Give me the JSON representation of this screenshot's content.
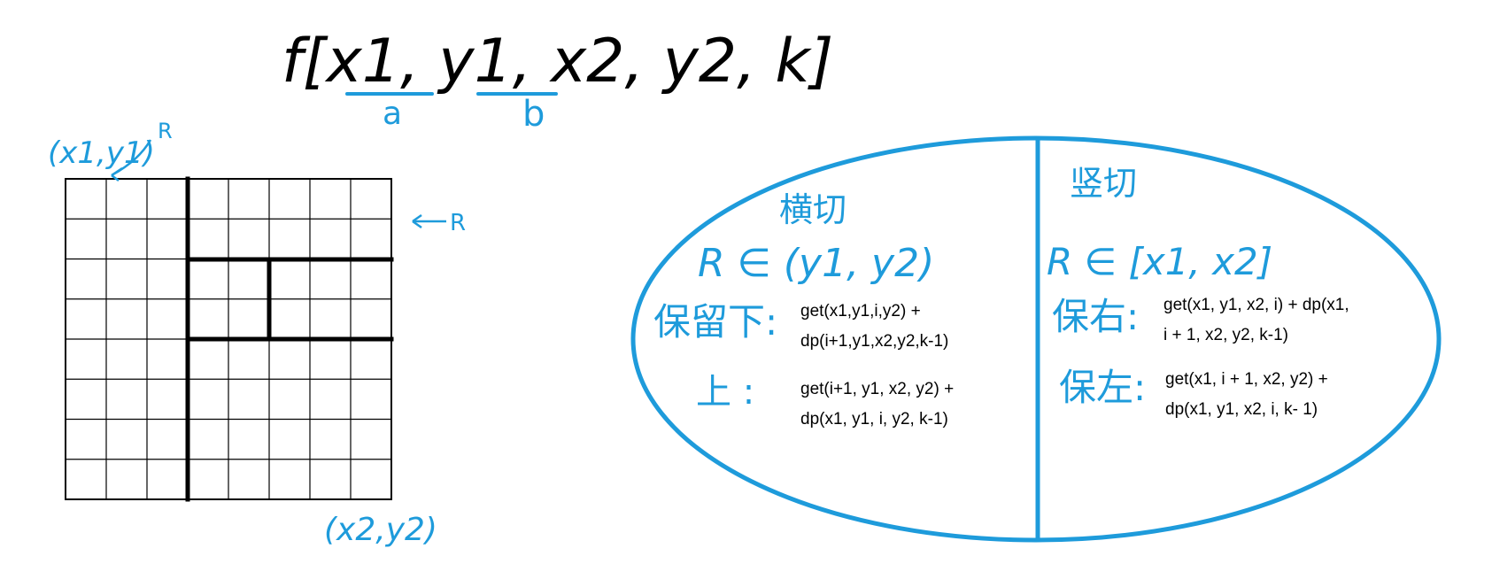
{
  "colors": {
    "ink_black": "#000000",
    "ink_blue": "#1E9BDB"
  },
  "header": {
    "function_text": "f[x1, y1, x2, y2, k]",
    "label_a": "a",
    "label_b": "b"
  },
  "grid": {
    "rows": 8,
    "cols": 8,
    "corner_top_left": "(x1,y1)",
    "corner_bottom_right": "(x2,y2)",
    "corner_arrow_label": "R",
    "side_arrow_label": "R"
  },
  "ellipse": {
    "left": {
      "title": "横切",
      "range": "R ∈ (y1, y2)",
      "keep_bottom_label": "保留下:",
      "keep_bottom_line1": "get(x1,y1,i,y2) +",
      "keep_bottom_line2": "dp(i+1,y1,x2,y2,k-1)",
      "keep_top_label": "上 :",
      "keep_top_line1": "get(i+1, y1, x2, y2) +",
      "keep_top_line2": "dp(x1, y1, i, y2, k-1)"
    },
    "right": {
      "title": "竖切",
      "range": "R ∈ [x1, x2]",
      "keep_right_label": "保右:",
      "keep_right_line1": "get(x1, y1, x2, i) + dp(x1,",
      "keep_right_line2": "i + 1, x2, y2, k-1)",
      "keep_left_label": "保左:",
      "keep_left_line1": "get(x1, i + 1, x2, y2) +",
      "keep_left_line2": "dp(x1, y1, x2, i, k- 1)"
    }
  }
}
